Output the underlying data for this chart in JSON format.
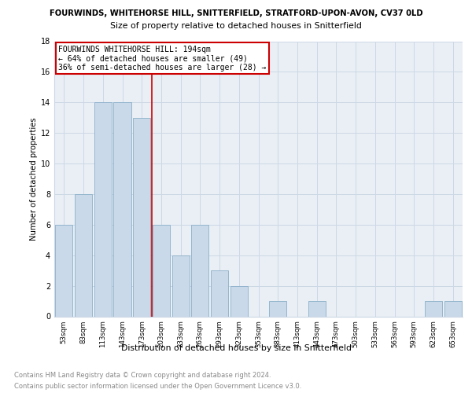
{
  "title_line1": "FOURWINDS, WHITEHORSE HILL, SNITTERFIELD, STRATFORD-UPON-AVON, CV37 0LD",
  "title_line2": "Size of property relative to detached houses in Snitterfield",
  "xlabel": "Distribution of detached houses by size in Snitterfield",
  "ylabel": "Number of detached properties",
  "categories": [
    "53sqm",
    "83sqm",
    "113sqm",
    "143sqm",
    "173sqm",
    "203sqm",
    "233sqm",
    "263sqm",
    "293sqm",
    "323sqm",
    "353sqm",
    "383sqm",
    "413sqm",
    "443sqm",
    "473sqm",
    "503sqm",
    "533sqm",
    "563sqm",
    "593sqm",
    "623sqm",
    "653sqm"
  ],
  "values": [
    6,
    8,
    14,
    14,
    13,
    6,
    4,
    6,
    3,
    2,
    0,
    1,
    0,
    1,
    0,
    0,
    0,
    0,
    0,
    1,
    1
  ],
  "bar_color": "#c9d9ea",
  "bar_edge_color": "#8aafc8",
  "grid_color": "#cdd8e5",
  "background_color": "#eaeff5",
  "vline_x": 4.53,
  "vline_color": "#cc0000",
  "annotation_text": "FOURWINDS WHITEHORSE HILL: 194sqm\n← 64% of detached houses are smaller (49)\n36% of semi-detached houses are larger (28) →",
  "annotation_box_color": "#ffffff",
  "annotation_box_edge": "#cc0000",
  "ylim": [
    0,
    18
  ],
  "yticks": [
    0,
    2,
    4,
    6,
    8,
    10,
    12,
    14,
    16,
    18
  ],
  "footnote1": "Contains HM Land Registry data © Crown copyright and database right 2024.",
  "footnote2": "Contains public sector information licensed under the Open Government Licence v3.0."
}
